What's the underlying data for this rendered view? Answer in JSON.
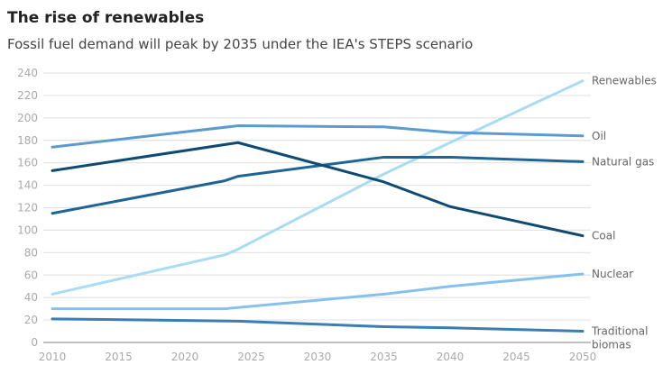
{
  "chart_data": {
    "type": "line",
    "title": "The rise of renewables",
    "subtitle": "Fossil fuel demand will peak by 2035 under the IEA's STEPS scenario",
    "xlabel": "",
    "ylabel": "",
    "xlim": [
      2010,
      2050
    ],
    "ylim": [
      0,
      240
    ],
    "xticks": [
      "2010",
      "2015",
      "2020",
      "2025",
      "2030",
      "2035",
      "2040",
      "2045",
      "2050"
    ],
    "yticks": [
      "0",
      "20",
      "40",
      "60",
      "80",
      "100",
      "120",
      "140",
      "160",
      "180",
      "200",
      "220",
      "240"
    ],
    "grid": true,
    "legend": "direct labels at right",
    "series": [
      {
        "name": "Renewables",
        "color": "#a8dcf4",
        "x": [
          2010,
          2023,
          2024,
          2035,
          2040,
          2050
        ],
        "values": [
          43,
          78,
          83,
          150,
          178,
          233
        ]
      },
      {
        "name": "Oil",
        "color": "#5b9bd0",
        "x": [
          2010,
          2024,
          2035,
          2040,
          2050
        ],
        "values": [
          174,
          193,
          192,
          187,
          184
        ]
      },
      {
        "name": "Natural gas",
        "color": "#1e6597",
        "x": [
          2010,
          2023,
          2024,
          2035,
          2040,
          2050
        ],
        "values": [
          115,
          144,
          148,
          165,
          165,
          161
        ]
      },
      {
        "name": "Coal",
        "color": "#0f4a73",
        "x": [
          2010,
          2024,
          2035,
          2040,
          2050
        ],
        "values": [
          153,
          178,
          143,
          121,
          95
        ]
      },
      {
        "name": "Nuclear",
        "color": "#86c1ee",
        "x": [
          2010,
          2023,
          2035,
          2040,
          2050
        ],
        "values": [
          30,
          30,
          43,
          50,
          61
        ]
      },
      {
        "name": "Traditional biomas",
        "label_lines": [
          "Traditional",
          "biomas"
        ],
        "color": "#3a7eb3",
        "x": [
          2010,
          2024,
          2035,
          2040,
          2050
        ],
        "values": [
          21,
          19,
          14,
          13,
          10
        ]
      }
    ]
  }
}
